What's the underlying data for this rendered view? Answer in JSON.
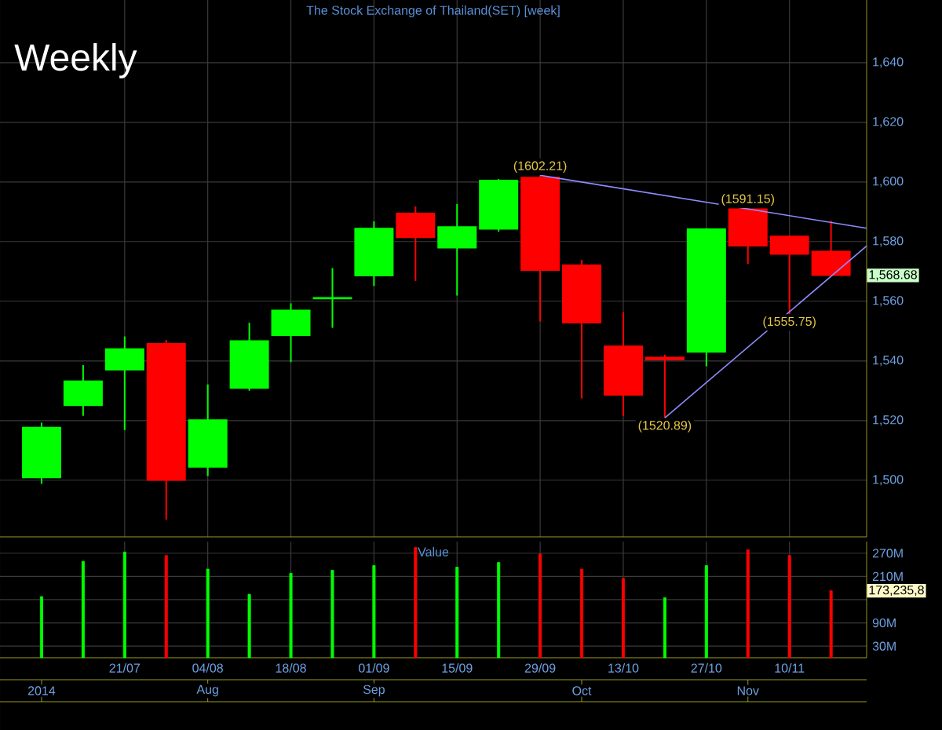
{
  "chart_data": [
    {
      "type": "candlestick",
      "title": "The Stock Exchange of Thailand(SET) [week]",
      "subtitle": "Weekly",
      "x": [
        "2014-07-07",
        "2014-07-14",
        "2014-07-21",
        "2014-07-28",
        "2014-08-04",
        "2014-08-11",
        "2014-08-18",
        "2014-08-25",
        "2014-09-01",
        "2014-09-08",
        "2014-09-15",
        "2014-09-22",
        "2014-09-29",
        "2014-10-06",
        "2014-10-13",
        "2014-10-20",
        "2014-10-27",
        "2014-11-03",
        "2014-11-10",
        "2014-11-17"
      ],
      "ohlc": [
        [
          1500.9,
          1519.3,
          1498.8,
          1517.7
        ],
        [
          1525.1,
          1538.6,
          1521.6,
          1533.2
        ],
        [
          1537.0,
          1548.2,
          1516.8,
          1544.0
        ],
        [
          1545.8,
          1547.0,
          1486.8,
          1500.0
        ],
        [
          1504.4,
          1532.1,
          1501.4,
          1520.2
        ],
        [
          1530.9,
          1552.8,
          1530.0,
          1546.7
        ],
        [
          1548.6,
          1559.3,
          1539.6,
          1557.0
        ],
        [
          1560.9,
          1571.1,
          1551.1,
          1561.2
        ],
        [
          1568.6,
          1586.8,
          1565.1,
          1584.4
        ],
        [
          1589.5,
          1591.8,
          1566.8,
          1581.4
        ],
        [
          1577.9,
          1592.6,
          1561.9,
          1584.9
        ],
        [
          1584.2,
          1601.0,
          1583.3,
          1600.5
        ],
        [
          1601.5,
          1602.21,
          1553.2,
          1570.4
        ],
        [
          1572.1,
          1573.9,
          1527.4,
          1552.8
        ],
        [
          1544.9,
          1556.3,
          1521.5,
          1528.6
        ],
        [
          1541.2,
          1542.1,
          1520.89,
          1540.4
        ],
        [
          1543.0,
          1584.5,
          1538.2,
          1584.2
        ],
        [
          1590.9,
          1591.15,
          1572.5,
          1578.6
        ],
        [
          1581.8,
          1582.0,
          1555.75,
          1575.8
        ],
        [
          1576.7,
          1587.0,
          1568.5,
          1568.68
        ]
      ],
      "colors": [
        "#00ff00",
        "#00ff00",
        "#00ff00",
        "#ff0000",
        "#00ff00",
        "#00ff00",
        "#00ff00",
        "#00ff00",
        "#00ff00",
        "#ff0000",
        "#00ff00",
        "#00ff00",
        "#ff0000",
        "#ff0000",
        "#ff0000",
        "#ff0000",
        "#00ff00",
        "#ff0000",
        "#ff0000",
        "#ff0000"
      ],
      "series": [
        {
          "type": "line",
          "color": "#8c8cff",
          "x": [
            "2014-09-29",
            "2014-11-23"
          ],
          "values": [
            1602.21,
            1584.5
          ]
        },
        {
          "type": "line",
          "color": "#8c8cff",
          "x": [
            "2014-10-20",
            "2014-11-23"
          ],
          "values": [
            1520.89,
            1578.5
          ]
        }
      ],
      "xlim": [
        "2014-06-30",
        "2014-11-23"
      ],
      "ylim": [
        1481,
        1661
      ],
      "xticks": [
        {
          "value": "2014-07-21",
          "label": null
        },
        {
          "value": "2014-08-04",
          "label": null
        },
        {
          "value": "2014-08-18",
          "label": null
        },
        {
          "value": "2014-09-01",
          "label": null
        },
        {
          "value": "2014-09-15",
          "label": null
        },
        {
          "value": "2014-09-29",
          "label": null
        },
        {
          "value": "2014-10-13",
          "label": null
        },
        {
          "value": "2014-10-27",
          "label": null
        },
        {
          "value": "2014-11-10",
          "label": null
        }
      ],
      "yticks": [
        {
          "value": 1500,
          "label": "1,500"
        },
        {
          "value": 1520,
          "label": "1,520"
        },
        {
          "value": 1540,
          "label": "1,540"
        },
        {
          "value": 1560,
          "label": "1,560"
        },
        {
          "value": 1580,
          "label": "1,580"
        },
        {
          "value": 1600,
          "label": "1,600"
        },
        {
          "value": 1620,
          "label": "1,620"
        },
        {
          "value": 1640,
          "label": "1,640"
        }
      ],
      "tick_labels": "y",
      "grid": true,
      "annotations": [
        {
          "text": "(1602.21)",
          "x": "2014-09-29",
          "y": 1602.21
        },
        {
          "text": "(1520.89)",
          "x": "2014-10-20",
          "y": 1520.89
        },
        {
          "text": "(1591.15)",
          "x": "2014-11-03",
          "y": 1591.15
        },
        {
          "text": "(1555.75)",
          "x": "2014-11-10",
          "y": 1555.75
        },
        "1,568.68"
      ]
    },
    {
      "type": "bar",
      "title": "Value",
      "x": [
        "2014-07-07",
        "2014-07-14",
        "2014-07-21",
        "2014-07-28",
        "2014-08-04",
        "2014-08-11",
        "2014-08-18",
        "2014-08-25",
        "2014-09-01",
        "2014-09-08",
        "2014-09-15",
        "2014-09-22",
        "2014-09-29",
        "2014-10-06",
        "2014-10-13",
        "2014-10-20",
        "2014-10-27",
        "2014-11-03",
        "2014-11-10",
        "2014-11-17"
      ],
      "values": [
        158,
        249,
        273,
        264,
        229,
        164,
        218,
        226,
        238,
        285,
        234,
        246,
        268,
        229,
        205,
        155,
        238,
        279,
        264,
        173
      ],
      "colors": [
        "#00ff00",
        "#00ff00",
        "#00ff00",
        "#ff0000",
        "#00ff00",
        "#00ff00",
        "#00ff00",
        "#00ff00",
        "#00ff00",
        "#ff0000",
        "#00ff00",
        "#00ff00",
        "#ff0000",
        "#ff0000",
        "#ff0000",
        "#00ff00",
        "#00ff00",
        "#ff0000",
        "#ff0000",
        "#ff0000"
      ],
      "xlim": [
        "2014-06-30",
        "2014-11-23"
      ],
      "ylim": [
        0,
        300
      ],
      "xticks": [
        {
          "value": "2014-07-21",
          "label": "21/07"
        },
        {
          "value": "2014-08-04",
          "label": "04/08"
        },
        {
          "value": "2014-08-18",
          "label": "18/08"
        },
        {
          "value": "2014-09-01",
          "label": "01/09"
        },
        {
          "value": "2014-09-15",
          "label": "15/09"
        },
        {
          "value": "2014-09-29",
          "label": "29/09"
        },
        {
          "value": "2014-10-13",
          "label": "13/10"
        },
        {
          "value": "2014-10-27",
          "label": "27/10"
        },
        {
          "value": "2014-11-10",
          "label": "10/11"
        }
      ],
      "x2lim": [
        "2014-06-30",
        "2014-11-23"
      ],
      "x2ticks": [
        {
          "value": "2014-07-07",
          "label": "2014"
        },
        {
          "value": "2014-08-04",
          "label": "Aug"
        },
        {
          "value": "2014-09-01",
          "label": "Sep"
        },
        {
          "value": "2014-10-06",
          "label": "Oct"
        },
        {
          "value": "2014-11-03",
          "label": "Nov"
        }
      ],
      "yticks": [
        {
          "value": 30,
          "label": "30M"
        },
        {
          "value": 90,
          "label": "90M"
        },
        {
          "value": 150,
          "label": null
        },
        {
          "value": 210,
          "label": "210M"
        },
        {
          "value": 270,
          "label": "270M"
        }
      ],
      "grid": true,
      "annotations": [
        "173,235,8"
      ]
    }
  ]
}
